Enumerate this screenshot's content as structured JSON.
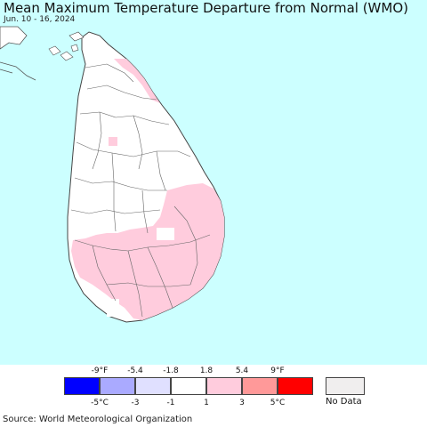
{
  "title": "Mean Maximum Temperature Departure from Normal (WMO)",
  "subtitle": "Jun. 10 - 16, 2024",
  "source": "Source: World Meteorological Organization",
  "colors": {
    "ocean": "#ccffff",
    "land_normal": "#ffffff",
    "land_warm": "#ffccdd",
    "land_hot": "#ff9999",
    "border": "#555555"
  },
  "legend": {
    "fahrenheit_ticks": [
      "-9°F",
      "-5.4",
      "-1.8",
      "1.8",
      "5.4",
      "9°F"
    ],
    "celsius_ticks": [
      "-5°C",
      "-3",
      "-1",
      "1",
      "3",
      "5°C"
    ],
    "bins": [
      {
        "color": "#0000ff"
      },
      {
        "color": "#aaaaff"
      },
      {
        "color": "#e0e0ff"
      },
      {
        "color": "#ffffff"
      },
      {
        "color": "#ffccdd"
      },
      {
        "color": "#ff9999"
      },
      {
        "color": "#ff0000"
      }
    ],
    "no_data_label": "No Data",
    "no_data_color": "#f0eeee"
  }
}
